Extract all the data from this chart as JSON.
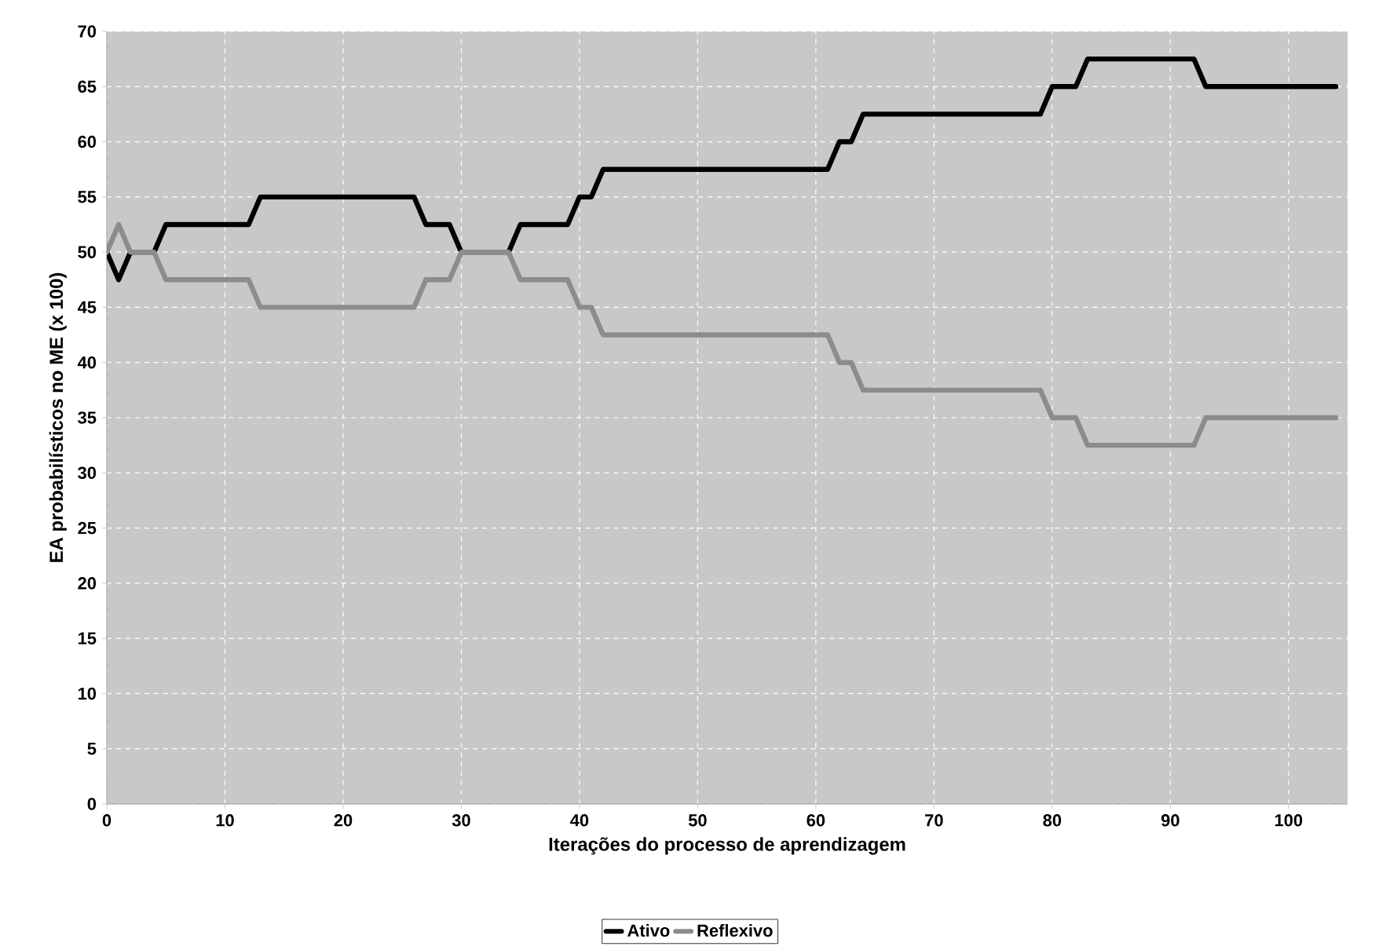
{
  "chart_data": {
    "type": "line",
    "xlabel": "Iterações do processo de aprendizagem",
    "ylabel": "EA probabilísticos no ME (x 100)",
    "xlim": [
      0,
      105
    ],
    "ylim": [
      0,
      70
    ],
    "xticks": [
      0,
      10,
      20,
      30,
      40,
      50,
      60,
      70,
      80,
      90,
      100
    ],
    "yticks": [
      0,
      5,
      10,
      15,
      20,
      25,
      30,
      35,
      40,
      45,
      50,
      55,
      60,
      65,
      70
    ],
    "grid": true,
    "legend": "bottom",
    "marker": "none",
    "line_style": "solid",
    "series": [
      {
        "name": "Ativo",
        "color": "#000000",
        "x": [
          0,
          1,
          2,
          4,
          5,
          12,
          13,
          26,
          27,
          29,
          30,
          34,
          35,
          39,
          40,
          41,
          42,
          61,
          62,
          63,
          64,
          79,
          80,
          82,
          83,
          92,
          93,
          104
        ],
        "values": [
          50,
          47.5,
          50,
          50,
          52.5,
          52.5,
          55,
          55,
          52.5,
          52.5,
          50,
          50,
          52.5,
          52.5,
          55,
          55,
          57.5,
          57.5,
          60,
          60,
          62.5,
          62.5,
          65,
          65,
          67.5,
          67.5,
          65,
          65
        ]
      },
      {
        "name": "Reflexivo",
        "color": "#8c8c8c",
        "x": [
          0,
          1,
          2,
          4,
          5,
          12,
          13,
          26,
          27,
          29,
          30,
          34,
          35,
          39,
          40,
          41,
          42,
          61,
          62,
          63,
          64,
          79,
          80,
          82,
          83,
          92,
          93,
          104
        ],
        "values": [
          50,
          52.5,
          50,
          50,
          47.5,
          47.5,
          45,
          45,
          47.5,
          47.5,
          50,
          50,
          47.5,
          47.5,
          45,
          45,
          42.5,
          42.5,
          40,
          40,
          37.5,
          37.5,
          35,
          35,
          32.5,
          32.5,
          35,
          35
        ]
      }
    ]
  }
}
